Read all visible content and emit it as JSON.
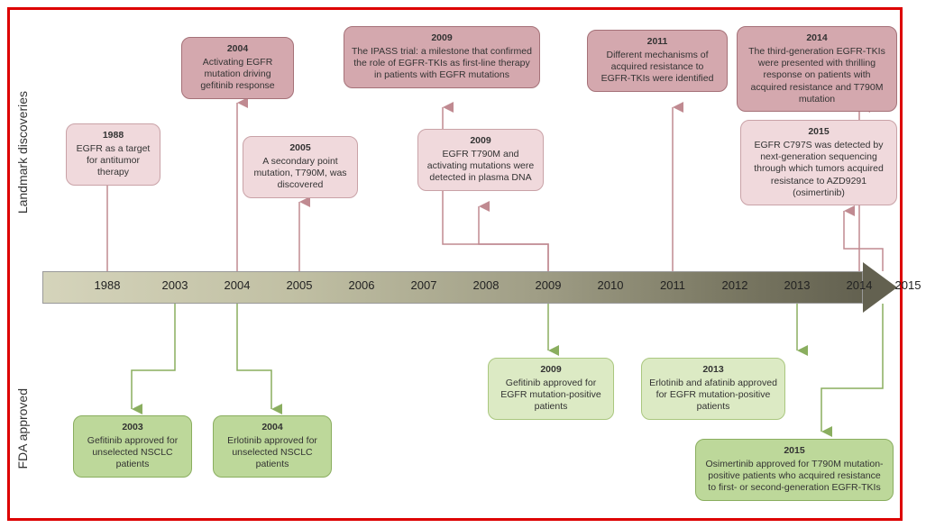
{
  "labels": {
    "top": "Landmark discoveries",
    "bottom": "FDA approved"
  },
  "timeline": {
    "years": [
      "1988",
      "2003",
      "2004",
      "2005",
      "2006",
      "2007",
      "2008",
      "2009",
      "2010",
      "2011",
      "2012",
      "2013",
      "2014",
      "2015"
    ],
    "x_positions": [
      72,
      147,
      216,
      285,
      354,
      423,
      492,
      561,
      630,
      699,
      768,
      837,
      906,
      960
    ]
  },
  "discoveries": {
    "d1988": {
      "year": "1988",
      "text": "EGFR as a target for antitumor therapy"
    },
    "d2004": {
      "year": "2004",
      "text": "Activating EGFR mutation driving gefitinib response"
    },
    "d2005": {
      "year": "2005",
      "text": "A secondary point mutation, T790M, was discovered"
    },
    "d2009a": {
      "year": "2009",
      "text": "The IPASS trial: a milestone that confirmed the role of EGFR-TKIs as first-line therapy in patients with EGFR mutations"
    },
    "d2009b": {
      "year": "2009",
      "text": "EGFR T790M and activating mutations were detected in plasma DNA"
    },
    "d2011": {
      "year": "2011",
      "text": "Different mechanisms of acquired resistance to EGFR-TKIs were identified"
    },
    "d2014": {
      "year": "2014",
      "text": "The third-generation EGFR-TKIs were presented with thrilling response on patients with acquired resistance and T790M mutation"
    },
    "d2015": {
      "year": "2015",
      "text": "EGFR C797S was detected by next-generation sequencing through which tumors acquired resistance to AZD9291 (osimertinib)"
    }
  },
  "approvals": {
    "a2003": {
      "year": "2003",
      "text": "Gefitinib approved for unselected NSCLC patients"
    },
    "a2004": {
      "year": "2004",
      "text": "Erlotinib approved for unselected NSCLC patients"
    },
    "a2009": {
      "year": "2009",
      "text": "Gefitinib approved for EGFR mutation-positive patients"
    },
    "a2013": {
      "year": "2013",
      "text": "Erlotinib and afatinib approved for EGFR mutation-positive patients"
    },
    "a2015": {
      "year": "2015",
      "text": "Osimertinib approved for T790M mutation-positive patients who acquired resistance to first- or second-generation EGFR-TKIs"
    }
  },
  "colors": {
    "pink_dark": "#d4a8ae",
    "pink_light": "#f0d9dc",
    "green_dark": "#bdd89a",
    "green_light": "#dceac4",
    "pink_stroke": "#c08a91",
    "green_stroke": "#8aae5f"
  }
}
